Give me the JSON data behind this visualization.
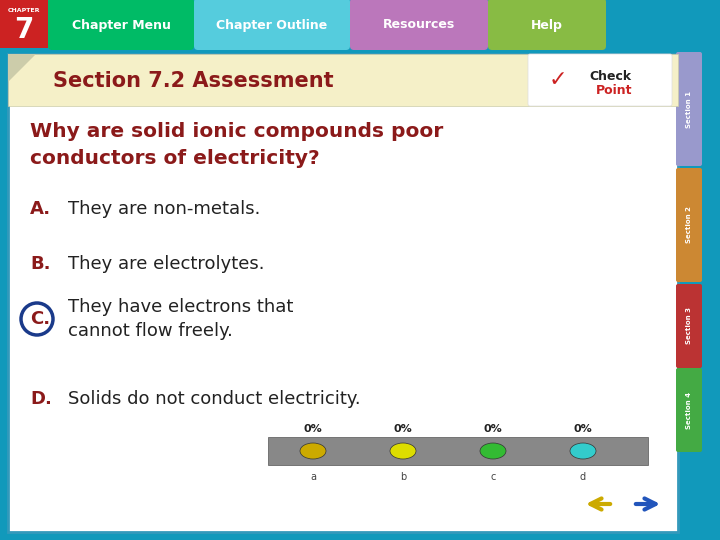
{
  "title": "Section 7.2 Assessment",
  "question": "Why are solid ionic compounds poor\nconductors of electricity?",
  "options": [
    {
      "letter": "A.",
      "text": "They are non-metals.",
      "circled": false
    },
    {
      "letter": "B.",
      "text": "They are electrolytes.",
      "circled": false
    },
    {
      "letter": "C.",
      "text": "They have electrons that\ncannot flow freely.",
      "circled": true
    },
    {
      "letter": "D.",
      "text": "Solids do not conduct electricity.",
      "circled": false
    }
  ],
  "title_color": "#8B1A1A",
  "question_color": "#8B1A1A",
  "letter_color": "#8B1A1A",
  "answer_text_color": "#222222",
  "circle_color": "#1a3a8a",
  "outer_bg": "#1199BB",
  "nav_bg": "#1199BB",
  "chapter_box_color": "#CC2222",
  "chapter_num": "7",
  "tab_labels": [
    "Chapter Menu",
    "Chapter Outline",
    "Resources",
    "Help"
  ],
  "tab_colors": [
    "#00BB77",
    "#55CCDD",
    "#BB77BB",
    "#88BB44"
  ],
  "side_tab_colors": [
    "#9999CC",
    "#CC8833",
    "#BB3333",
    "#44AA44"
  ],
  "side_tab_labels": [
    "Section 1",
    "Section 2",
    "Section 3",
    "Section 4"
  ],
  "title_bg_color": "#F5F0C8",
  "main_bg": "#FFFFFF",
  "pct_labels": [
    "0%",
    "0%",
    "0%",
    "0%"
  ],
  "pct_dot_colors": [
    "#CCAA00",
    "#DDDD00",
    "#33BB33",
    "#33CCCC"
  ],
  "bar_color": "#888888"
}
